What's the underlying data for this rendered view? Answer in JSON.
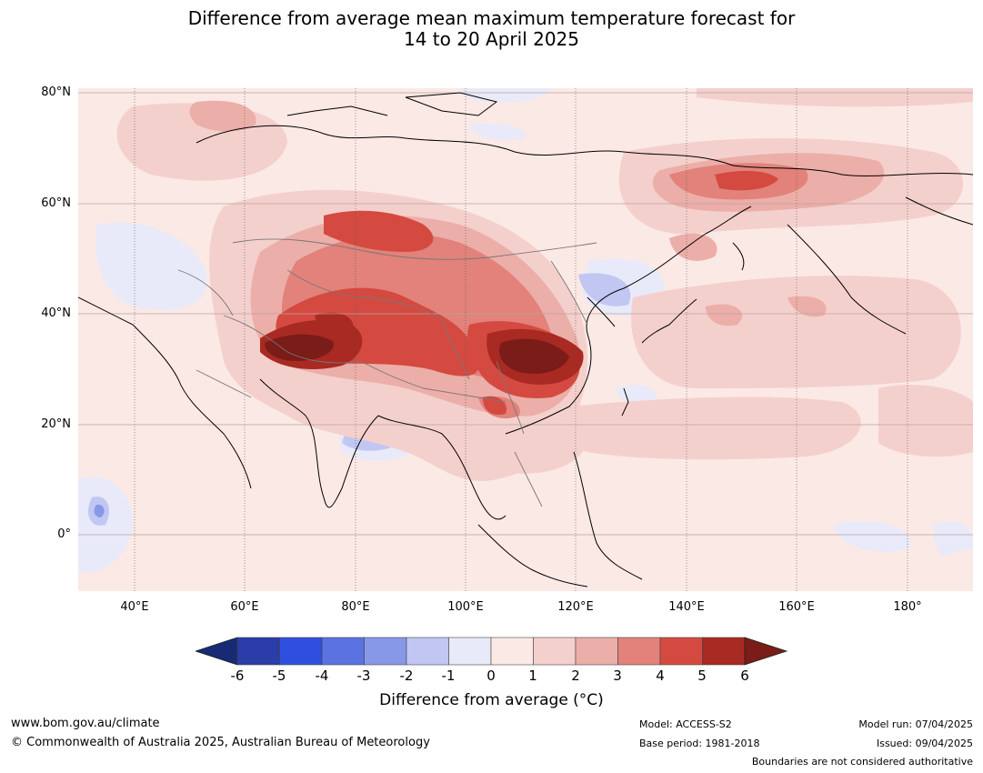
{
  "title": {
    "line1": "Difference from average mean maximum temperature forecast for",
    "line2": "14 to 20 April 2025"
  },
  "map": {
    "extent_lon": [
      30,
      191
    ],
    "extent_lat": [
      -10,
      81
    ],
    "latitude_labels": [
      "80°N",
      "60°N",
      "40°N",
      "20°N",
      "0°"
    ],
    "longitude_labels": [
      "40°E",
      "60°E",
      "80°E",
      "100°E",
      "120°E",
      "140°E",
      "160°E",
      "180°"
    ],
    "background_color": "#fbe9e6"
  },
  "colorbar": {
    "ticks": [
      "-6",
      "-5",
      "-4",
      "-3",
      "-2",
      "-1",
      "0",
      "1",
      "2",
      "3",
      "4",
      "5",
      "6"
    ],
    "colors": [
      "#172a73",
      "#2a3da8",
      "#2f4fdf",
      "#5b72e2",
      "#8898e8",
      "#c1c7f2",
      "#e8eaf9",
      "#fbe9e6",
      "#f4d0cd",
      "#ecaea8",
      "#e2827a",
      "#d44a40",
      "#a82a22",
      "#7a1c17"
    ],
    "title": "Difference from average (°C)"
  },
  "footer": {
    "website": "www.bom.gov.au/climate",
    "copyright": "© Commonwealth of Australia 2025, Australian Bureau of Meteorology",
    "model": "Model: ACCESS-S2",
    "base_period": "Base period: 1981-2018",
    "model_run": "Model run: 07/04/2025",
    "issued": "Issued: 09/04/2025",
    "boundaries_note": "Boundaries are not considered authoritative"
  }
}
